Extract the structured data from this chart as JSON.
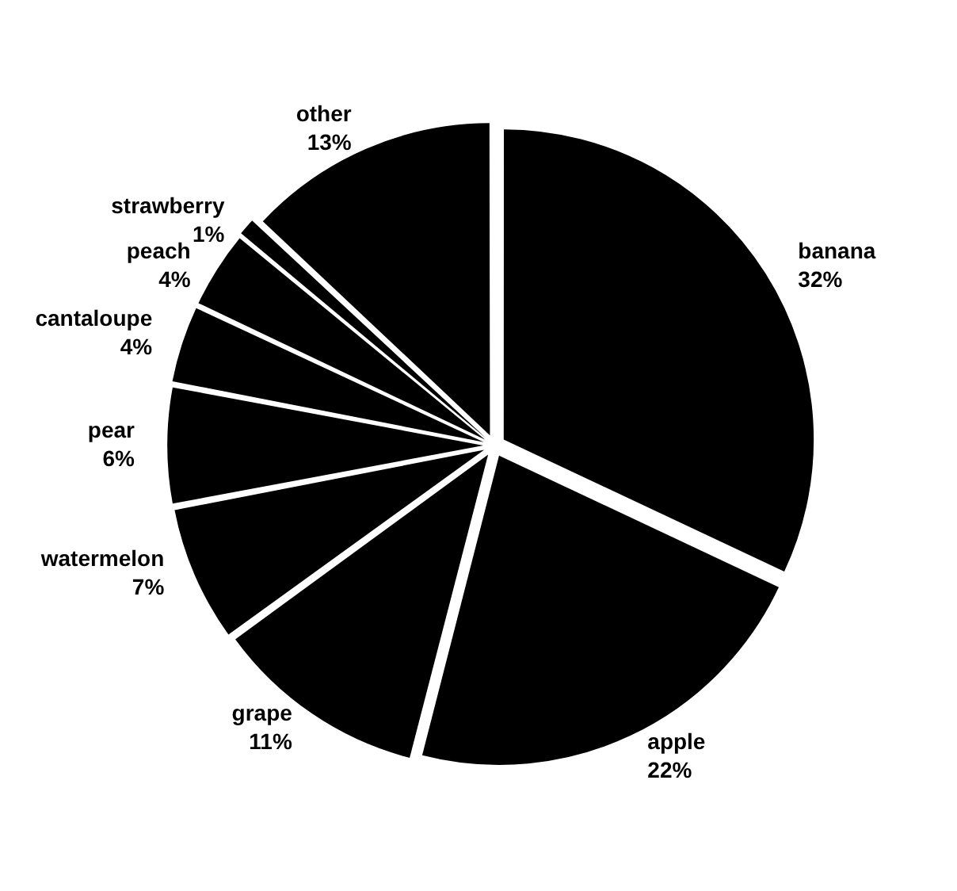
{
  "chart_data": {
    "type": "pie",
    "categories": [
      "banana",
      "apple",
      "grape",
      "watermelon",
      "pear",
      "cantaloupe",
      "peach",
      "strawberry",
      "other"
    ],
    "values": [
      32,
      22,
      11,
      7,
      6,
      4,
      4,
      1,
      13
    ],
    "value_labels": [
      "32%",
      "22%",
      "11%",
      "7%",
      "6%",
      "4%",
      "4%",
      "1%",
      "13%"
    ],
    "colors": [
      "#000000",
      "#000000",
      "#000000",
      "#000000",
      "#000000",
      "#000000",
      "#000000",
      "#000000",
      "#000000"
    ]
  }
}
